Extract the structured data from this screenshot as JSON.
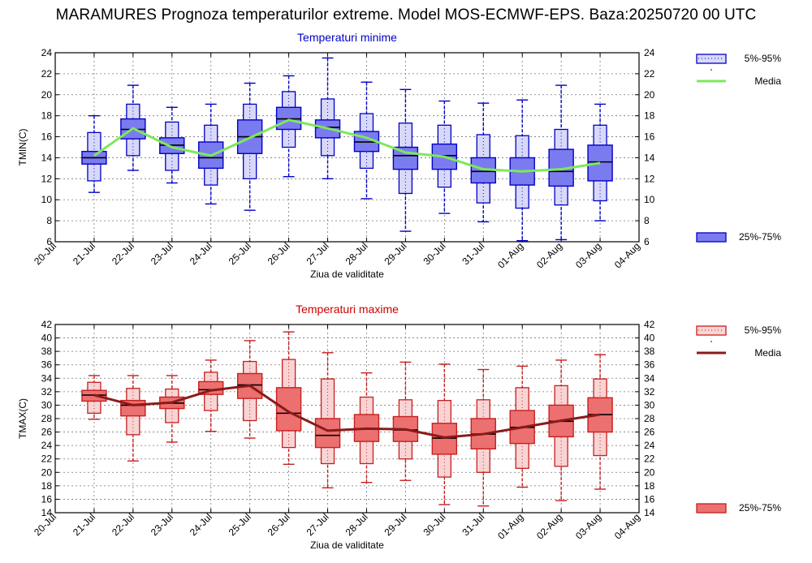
{
  "title": "MARAMURES  Prognoza temperaturilor extreme.  Model MOS-ECMWF-EPS. Baza:20250720 00 UTC",
  "colors": {
    "min_box": "#7b7bf0",
    "min_box_stroke": "#0000c8",
    "min_whisker_fill": "#d8d8f8",
    "min_mean": "#7ee85a",
    "min_title": "#0000cc",
    "max_box": "#ec7070",
    "max_box_stroke": "#c81e1e",
    "max_whisker_fill": "#f8d4d4",
    "max_mean": "#8b1a1a",
    "max_title": "#cc0000"
  },
  "chart_data": [
    {
      "type": "box",
      "title": "Temperaturi minime",
      "xlabel": "Ziua de validitate",
      "ylabel": "TMIN(C)",
      "ylim": [
        6,
        24
      ],
      "yticks": [
        6,
        8,
        10,
        12,
        14,
        16,
        18,
        20,
        22,
        24
      ],
      "grid": true,
      "legend_placement": "right",
      "categories": [
        "20-Jul",
        "21-Jul",
        "22-Jul",
        "23-Jul",
        "24-Jul",
        "25-Jul",
        "26-Jul",
        "27-Jul",
        "28-Jul",
        "29-Jul",
        "30-Jul",
        "31-Jul",
        "01-Aug",
        "02-Aug",
        "03-Aug",
        "04-Aug"
      ],
      "legend": [
        {
          "label": "5%-95%"
        },
        {
          "label": "Media"
        },
        {
          "label": "25%-75%"
        }
      ],
      "series": [
        {
          "x": "21-Jul",
          "p5": 10.7,
          "p95": 18.0,
          "p25": 13.4,
          "p75": 14.6,
          "median": 14.0,
          "q5": 11.8,
          "q95": 16.4,
          "mean": 14.2
        },
        {
          "x": "22-Jul",
          "p5": 12.8,
          "p95": 20.9,
          "p25": 15.8,
          "p75": 17.7,
          "median": 16.7,
          "q5": 14.2,
          "q95": 19.1,
          "mean": 16.8
        },
        {
          "x": "23-Jul",
          "p5": 11.6,
          "p95": 18.8,
          "p25": 14.4,
          "p75": 15.9,
          "median": 15.2,
          "q5": 12.8,
          "q95": 17.4,
          "mean": 15.0
        },
        {
          "x": "24-Jul",
          "p5": 9.6,
          "p95": 19.1,
          "p25": 13.0,
          "p75": 15.5,
          "median": 14.0,
          "q5": 11.4,
          "q95": 17.1,
          "mean": 14.2
        },
        {
          "x": "25-Jul",
          "p5": 9.0,
          "p95": 21.1,
          "p25": 14.4,
          "p75": 17.6,
          "median": 16.0,
          "q5": 12.0,
          "q95": 19.1,
          "mean": 15.9
        },
        {
          "x": "26-Jul",
          "p5": 12.2,
          "p95": 21.8,
          "p25": 16.7,
          "p75": 18.8,
          "median": 17.7,
          "q5": 15.0,
          "q95": 20.3,
          "mean": 17.6
        },
        {
          "x": "27-Jul",
          "p5": 12.0,
          "p95": 23.5,
          "p25": 15.9,
          "p75": 17.6,
          "median": 16.9,
          "q5": 14.2,
          "q95": 19.6,
          "mean": 16.8
        },
        {
          "x": "28-Jul",
          "p5": 10.1,
          "p95": 21.2,
          "p25": 14.6,
          "p75": 16.5,
          "median": 15.5,
          "q5": 13.0,
          "q95": 18.2,
          "mean": 15.9
        },
        {
          "x": "29-Jul",
          "p5": 7.0,
          "p95": 20.5,
          "p25": 12.9,
          "p75": 15.0,
          "median": 14.2,
          "q5": 10.6,
          "q95": 17.3,
          "mean": 14.5
        },
        {
          "x": "30-Jul",
          "p5": 8.7,
          "p95": 19.4,
          "p25": 12.9,
          "p75": 15.3,
          "median": 14.2,
          "q5": 11.2,
          "q95": 17.1,
          "mean": 14.1
        },
        {
          "x": "31-Jul",
          "p5": 7.9,
          "p95": 19.2,
          "p25": 11.6,
          "p75": 14.0,
          "median": 12.7,
          "q5": 9.7,
          "q95": 16.2,
          "mean": 12.9
        },
        {
          "x": "01-Aug",
          "p5": 6.1,
          "p95": 19.5,
          "p25": 11.4,
          "p75": 14.0,
          "median": 12.7,
          "q5": 9.2,
          "q95": 16.1,
          "mean": 12.7
        },
        {
          "x": "02-Aug",
          "p5": 6.2,
          "p95": 20.9,
          "p25": 11.3,
          "p75": 14.8,
          "median": 12.7,
          "q5": 9.5,
          "q95": 16.7,
          "mean": 12.9
        },
        {
          "x": "03-Aug",
          "p5": 8.0,
          "p95": 19.1,
          "p25": 11.8,
          "p75": 15.2,
          "median": 13.6,
          "q5": 9.9,
          "q95": 17.1,
          "mean": 13.5
        }
      ]
    },
    {
      "type": "box",
      "title": "Temperaturi maxime",
      "xlabel": "Ziua de validitate",
      "ylabel": "TMAX(C)",
      "ylim": [
        14,
        42
      ],
      "yticks": [
        14,
        16,
        18,
        20,
        22,
        24,
        26,
        28,
        30,
        32,
        34,
        36,
        38,
        40,
        42
      ],
      "grid": true,
      "legend_placement": "right",
      "categories": [
        "20-Jul",
        "21-Jul",
        "22-Jul",
        "23-Jul",
        "24-Jul",
        "25-Jul",
        "26-Jul",
        "27-Jul",
        "28-Jul",
        "29-Jul",
        "30-Jul",
        "31-Jul",
        "01-Aug",
        "02-Aug",
        "03-Aug",
        "04-Aug"
      ],
      "legend": [
        {
          "label": "5%-95%"
        },
        {
          "label": "Media"
        },
        {
          "label": "25%-75%"
        }
      ],
      "series": [
        {
          "x": "21-Jul",
          "p5": 27.9,
          "p95": 34.4,
          "p25": 30.6,
          "p75": 32.2,
          "median": 31.5,
          "q5": 28.8,
          "q95": 33.4,
          "mean": 31.5
        },
        {
          "x": "22-Jul",
          "p5": 21.7,
          "p95": 34.4,
          "p25": 28.4,
          "p75": 30.7,
          "median": 30.0,
          "q5": 25.6,
          "q95": 32.5,
          "mean": 30.0
        },
        {
          "x": "23-Jul",
          "p5": 24.5,
          "p95": 34.4,
          "p25": 29.5,
          "p75": 31.2,
          "median": 30.3,
          "q5": 27.4,
          "q95": 32.4,
          "mean": 30.4
        },
        {
          "x": "24-Jul",
          "p5": 26.1,
          "p95": 36.7,
          "p25": 31.6,
          "p75": 33.5,
          "median": 32.3,
          "q5": 29.2,
          "q95": 34.9,
          "mean": 32.2
        },
        {
          "x": "25-Jul",
          "p5": 25.1,
          "p95": 39.6,
          "p25": 31.0,
          "p75": 34.7,
          "median": 33.0,
          "q5": 27.7,
          "q95": 36.5,
          "mean": 32.9
        },
        {
          "x": "26-Jul",
          "p5": 21.2,
          "p95": 40.9,
          "p25": 26.2,
          "p75": 32.6,
          "median": 28.8,
          "q5": 23.7,
          "q95": 36.8,
          "mean": 29.0
        },
        {
          "x": "27-Jul",
          "p5": 17.7,
          "p95": 37.8,
          "p25": 23.7,
          "p75": 28.0,
          "median": 25.5,
          "q5": 21.3,
          "q95": 33.9,
          "mean": 26.2
        },
        {
          "x": "28-Jul",
          "p5": 18.5,
          "p95": 34.8,
          "p25": 24.6,
          "p75": 28.6,
          "median": 26.5,
          "q5": 21.3,
          "q95": 31.2,
          "mean": 26.5
        },
        {
          "x": "29-Jul",
          "p5": 18.8,
          "p95": 36.4,
          "p25": 24.6,
          "p75": 28.3,
          "median": 26.3,
          "q5": 22.0,
          "q95": 30.8,
          "mean": 26.4
        },
        {
          "x": "30-Jul",
          "p5": 15.2,
          "p95": 36.1,
          "p25": 22.7,
          "p75": 27.3,
          "median": 25.1,
          "q5": 19.3,
          "q95": 30.7,
          "mean": 25.2
        },
        {
          "x": "31-Jul",
          "p5": 15.0,
          "p95": 35.3,
          "p25": 23.5,
          "p75": 28.0,
          "median": 25.7,
          "q5": 20.0,
          "q95": 30.8,
          "mean": 25.7
        },
        {
          "x": "01-Aug",
          "p5": 17.8,
          "p95": 35.8,
          "p25": 24.3,
          "p75": 29.2,
          "median": 26.7,
          "q5": 20.6,
          "q95": 32.6,
          "mean": 26.7
        },
        {
          "x": "02-Aug",
          "p5": 15.8,
          "p95": 36.7,
          "p25": 25.3,
          "p75": 30.0,
          "median": 27.6,
          "q5": 20.9,
          "q95": 32.9,
          "mean": 27.7
        },
        {
          "x": "03-Aug",
          "p5": 17.5,
          "p95": 37.5,
          "p25": 26.0,
          "p75": 31.1,
          "median": 28.6,
          "q5": 22.5,
          "q95": 33.9,
          "mean": 28.6
        }
      ]
    }
  ]
}
